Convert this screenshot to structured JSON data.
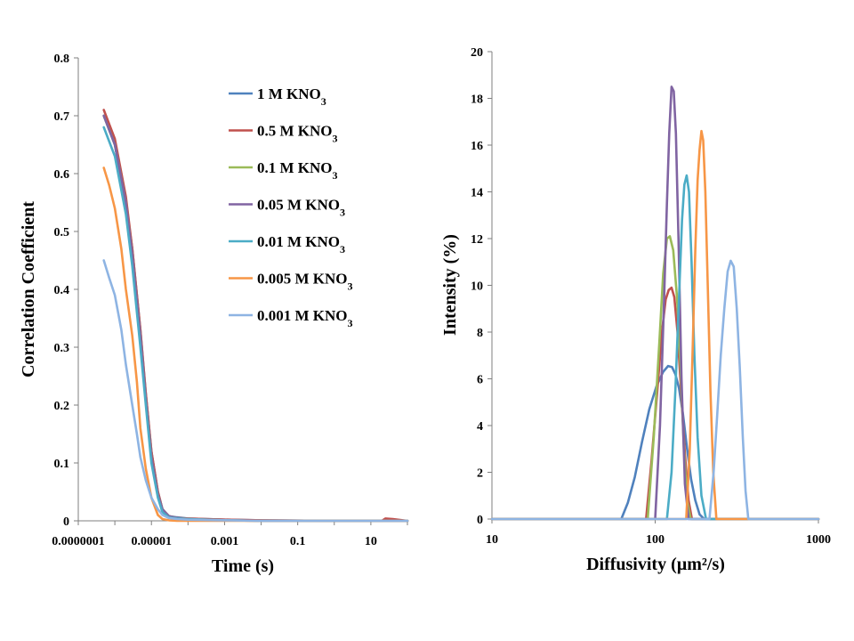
{
  "chart_data": [
    {
      "type": "line",
      "xscale": "log",
      "xlabel": "Time (s)",
      "ylabel": "Correlation Coefficient",
      "xlim": [
        1e-07,
        100
      ],
      "ylim": [
        0,
        0.8
      ],
      "x_ticks": [
        1e-07,
        1e-05,
        0.001,
        0.1,
        10
      ],
      "x_tick_labels": [
        "0.0000001",
        "0.00001",
        "0.001",
        "0.1",
        "10"
      ],
      "y_ticks": [
        0,
        0.1,
        0.2,
        0.3,
        0.4,
        0.5,
        0.6,
        0.7,
        0.8
      ],
      "y_tick_labels": [
        "0",
        "0.1",
        "0.2",
        "0.3",
        "0.4",
        "0.5",
        "0.6",
        "0.7",
        "0.8"
      ],
      "legend": "top-right",
      "grid": false,
      "series": [
        {
          "name": "1 M KNO₃",
          "color": "#4f81bd",
          "x": [
            5e-07,
            1e-06,
            2e-06,
            3e-06,
            5e-06,
            7e-06,
            1e-05,
            1.5e-05,
            2e-05,
            3e-05,
            5e-05,
            0.0001,
            0.001,
            0.01,
            1,
            100
          ],
          "y": [
            0.7,
            0.65,
            0.55,
            0.47,
            0.33,
            0.22,
            0.12,
            0.05,
            0.02,
            0.008,
            0.006,
            0.004,
            0.002,
            0.001,
            0.0,
            0.0
          ]
        },
        {
          "name": "0.5 M KNO₃",
          "color": "#c0504d",
          "x": [
            5e-07,
            1e-06,
            2e-06,
            3e-06,
            5e-06,
            7e-06,
            1e-05,
            1.5e-05,
            2e-05,
            3e-05,
            5e-05,
            0.0001,
            0.001,
            0.01,
            1,
            20,
            25,
            40,
            100
          ],
          "y": [
            0.71,
            0.66,
            0.56,
            0.47,
            0.33,
            0.22,
            0.12,
            0.05,
            0.02,
            0.008,
            0.005,
            0.004,
            0.002,
            0.001,
            0.0,
            0.0,
            0.004,
            0.003,
            0.0
          ]
        },
        {
          "name": "0.1 M KNO₃",
          "color": "#9bbb59",
          "x": [
            5e-07,
            1e-06,
            2e-06,
            3e-06,
            5e-06,
            7e-06,
            1e-05,
            1.5e-05,
            2e-05,
            3e-05,
            5e-05,
            0.0001,
            0.001,
            0.01,
            1,
            100
          ],
          "y": [
            0.7,
            0.65,
            0.55,
            0.46,
            0.32,
            0.21,
            0.11,
            0.045,
            0.02,
            0.008,
            0.005,
            0.003,
            0.001,
            0.0,
            0.0,
            0.0
          ]
        },
        {
          "name": "0.05 M KNO₃",
          "color": "#8064a2",
          "x": [
            5e-07,
            1e-06,
            2e-06,
            3e-06,
            5e-06,
            7e-06,
            1e-05,
            1.5e-05,
            2e-05,
            3e-05,
            5e-05,
            0.0001,
            0.001,
            0.01,
            1,
            100
          ],
          "y": [
            0.7,
            0.65,
            0.55,
            0.46,
            0.32,
            0.21,
            0.11,
            0.045,
            0.02,
            0.008,
            0.005,
            0.003,
            0.001,
            0.0,
            0.0,
            0.0
          ]
        },
        {
          "name": "0.01 M KNO₃",
          "color": "#4bacc6",
          "x": [
            5e-07,
            1e-06,
            2e-06,
            3e-06,
            5e-06,
            7e-06,
            1e-05,
            1.5e-05,
            2e-05,
            3e-05,
            5e-05,
            0.0001,
            0.001,
            0.01,
            1,
            100
          ],
          "y": [
            0.68,
            0.63,
            0.53,
            0.44,
            0.3,
            0.2,
            0.1,
            0.04,
            0.015,
            0.006,
            0.004,
            0.003,
            0.001,
            0.0,
            0.0,
            0.0
          ]
        },
        {
          "name": "0.005 M KNO₃",
          "color": "#f79646",
          "x": [
            5e-07,
            7e-07,
            1e-06,
            1.5e-06,
            2e-06,
            3e-06,
            4e-06,
            5e-06,
            7e-06,
            1e-05,
            1.5e-05,
            2e-05,
            3e-05,
            5e-05,
            0.0001,
            0.001,
            0.01,
            100
          ],
          "y": [
            0.61,
            0.58,
            0.54,
            0.47,
            0.4,
            0.32,
            0.24,
            0.16,
            0.09,
            0.04,
            0.01,
            0.003,
            0.001,
            0.0,
            0.0,
            0.0,
            0.0,
            0.0
          ]
        },
        {
          "name": "0.001 M KNO₃",
          "color": "#8eb4e3",
          "x": [
            5e-07,
            7e-07,
            1e-06,
            1.5e-06,
            2e-06,
            3e-06,
            4e-06,
            5e-06,
            7e-06,
            1e-05,
            1.5e-05,
            2e-05,
            3e-05,
            5e-05,
            0.0001,
            0.001,
            0.01,
            100
          ],
          "y": [
            0.45,
            0.42,
            0.39,
            0.33,
            0.27,
            0.2,
            0.15,
            0.11,
            0.07,
            0.04,
            0.02,
            0.01,
            0.005,
            0.003,
            0.002,
            0.001,
            0.0,
            0.0
          ]
        }
      ]
    },
    {
      "type": "line",
      "xscale": "log",
      "xlabel": "Diffusivity (µm²/s)",
      "ylabel": "Intensity (%)",
      "xlim": [
        10,
        1000
      ],
      "ylim": [
        0,
        20
      ],
      "x_ticks": [
        10,
        100,
        1000
      ],
      "x_tick_labels": [
        "10",
        "100",
        "1000"
      ],
      "y_ticks": [
        0,
        2,
        4,
        6,
        8,
        10,
        12,
        14,
        16,
        18,
        20
      ],
      "y_tick_labels": [
        "0",
        "2",
        "4",
        "6",
        "8",
        "10",
        "12",
        "14",
        "16",
        "18",
        "20"
      ],
      "grid": false,
      "series": [
        {
          "name": "1 M KNO₃",
          "color": "#4f81bd",
          "x": [
            10,
            62,
            68,
            75,
            83,
            92,
            102,
            112,
            120,
            127,
            133,
            140,
            148,
            157,
            166,
            176,
            187,
            200,
            1000
          ],
          "y": [
            0,
            0,
            0.7,
            1.8,
            3.3,
            4.7,
            5.7,
            6.3,
            6.55,
            6.5,
            6.2,
            5.6,
            4.5,
            3.0,
            1.7,
            0.8,
            0.2,
            0,
            0
          ]
        },
        {
          "name": "0.5 M KNO₃",
          "color": "#c0504d",
          "x": [
            10,
            88,
            95,
            103,
            110,
            116,
            121,
            126,
            131,
            137,
            144,
            152,
            160,
            168,
            1000
          ],
          "y": [
            0,
            0,
            2.5,
            5.5,
            8.0,
            9.4,
            9.8,
            9.9,
            9.5,
            8.0,
            5.5,
            2.8,
            0.8,
            0,
            0
          ]
        },
        {
          "name": "0.1 M KNO₃",
          "color": "#9bbb59",
          "x": [
            10,
            90,
            98,
            106,
            112,
            118,
            123,
            129,
            136,
            143,
            150,
            157,
            165,
            1000
          ],
          "y": [
            0,
            0,
            3.5,
            7.5,
            10.5,
            12.0,
            12.1,
            11.5,
            9.5,
            6.5,
            3.0,
            0.8,
            0,
            0
          ]
        },
        {
          "name": "0.05 M KNO₃",
          "color": "#8064a2",
          "x": [
            10,
            100,
            107,
            113,
            118,
            122,
            126,
            130,
            134,
            139,
            145,
            152,
            160,
            1000
          ],
          "y": [
            0,
            0,
            4.0,
            9.0,
            13.5,
            16.5,
            18.5,
            18.3,
            16.5,
            12.0,
            6.0,
            1.5,
            0,
            0
          ]
        },
        {
          "name": "0.01 M KNO₃",
          "color": "#4bacc6",
          "x": [
            10,
            118,
            126,
            133,
            140,
            146,
            151,
            156,
            161,
            167,
            174,
            182,
            192,
            205,
            1000
          ],
          "y": [
            0,
            0,
            2.0,
            5.5,
            9.5,
            12.8,
            14.3,
            14.7,
            14.0,
            11.0,
            7.0,
            3.5,
            1.0,
            0,
            0
          ]
        },
        {
          "name": "0.005 M KNO₃",
          "color": "#f79646",
          "x": [
            10,
            155,
            163,
            170,
            176,
            182,
            187,
            192,
            197,
            203,
            210,
            218,
            227,
            237,
            1000
          ],
          "y": [
            0,
            0,
            3.0,
            7.5,
            11.5,
            14.5,
            15.8,
            16.6,
            16.2,
            14.0,
            10.0,
            5.5,
            2.0,
            0,
            0
          ]
        },
        {
          "name": "0.001 M KNO₃",
          "color": "#8eb4e3",
          "x": [
            10,
            215,
            228,
            240,
            252,
            265,
            278,
            290,
            303,
            316,
            330,
            344,
            358,
            372,
            386,
            1000
          ],
          "y": [
            0,
            0,
            2.0,
            4.5,
            7.0,
            9.0,
            10.6,
            11.05,
            10.8,
            9.0,
            6.5,
            3.5,
            1.2,
            0,
            0,
            0
          ]
        }
      ]
    }
  ]
}
